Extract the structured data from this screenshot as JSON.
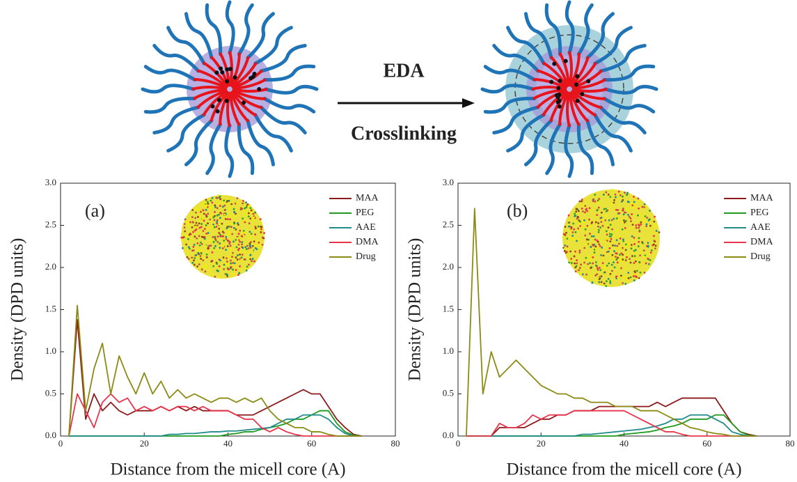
{
  "schematic": {
    "arrow_top": "EDA",
    "arrow_bottom": "Crosslinking"
  },
  "chart_data": [
    {
      "type": "line",
      "panel_label": "(a)",
      "xlabel": "Distance from the micell core (A)",
      "ylabel": "Density (DPD units)",
      "xlim": [
        0,
        80
      ],
      "ylim": [
        0,
        3
      ],
      "xticks": [
        0,
        20,
        40,
        60,
        80
      ],
      "yticks": [
        {
          "value": 0,
          "label": "0.0"
        },
        0.5,
        {
          "value": 1,
          "label": "1.0"
        },
        1.5,
        {
          "value": 2,
          "label": "2.0"
        },
        2.5,
        {
          "value": 3,
          "label": "3.0"
        }
      ],
      "legend": "upper right",
      "x": [
        2,
        4,
        6,
        8,
        10,
        12,
        14,
        16,
        18,
        20,
        22,
        24,
        26,
        28,
        30,
        32,
        34,
        36,
        38,
        40,
        42,
        44,
        46,
        48,
        50,
        52,
        54,
        56,
        58,
        60,
        62,
        64,
        66,
        68,
        70,
        72
      ],
      "series": [
        {
          "name": "MAA",
          "color": "#8b1a1a",
          "values": [
            0,
            1.38,
            0.2,
            0.5,
            0.3,
            0.4,
            0.3,
            0.25,
            0.3,
            0.3,
            0.3,
            0.35,
            0.3,
            0.35,
            0.3,
            0.35,
            0.3,
            0.3,
            0.3,
            0.3,
            0.25,
            0.25,
            0.25,
            0.3,
            0.35,
            0.4,
            0.45,
            0.5,
            0.55,
            0.5,
            0.5,
            0.35,
            0.2,
            0.1,
            0.02,
            0
          ]
        },
        {
          "name": "PEG",
          "color": "#1e9a1e",
          "values": [
            0,
            0,
            0,
            0,
            0,
            0,
            0,
            0,
            0,
            0,
            0,
            0,
            0,
            0,
            0,
            0,
            0,
            0,
            0,
            0.02,
            0.03,
            0.05,
            0.05,
            0.08,
            0.1,
            0.12,
            0.15,
            0.2,
            0.2,
            0.25,
            0.3,
            0.3,
            0.15,
            0.05,
            0.01,
            0
          ]
        },
        {
          "name": "AAE",
          "color": "#1f8a8a",
          "values": [
            0,
            0,
            0,
            0,
            0,
            0,
            0,
            0,
            0,
            0,
            0,
            0,
            0.02,
            0.02,
            0.03,
            0.03,
            0.04,
            0.05,
            0.05,
            0.06,
            0.06,
            0.07,
            0.08,
            0.09,
            0.1,
            0.15,
            0.2,
            0.2,
            0.25,
            0.25,
            0.25,
            0.2,
            0.1,
            0.03,
            0,
            0
          ]
        },
        {
          "name": "DMA",
          "color": "#e8334a",
          "values": [
            0,
            0.5,
            0.3,
            0.1,
            0.4,
            0.5,
            0.4,
            0.45,
            0.3,
            0.35,
            0.3,
            0.35,
            0.3,
            0.35,
            0.35,
            0.3,
            0.35,
            0.3,
            0.3,
            0.3,
            0.25,
            0.2,
            0.2,
            0.1,
            0.05,
            0.1,
            0.05,
            0.02,
            0,
            0,
            0,
            0,
            0,
            0,
            0,
            0
          ]
        },
        {
          "name": "Drug",
          "color": "#8a8a14",
          "values": [
            0,
            1.55,
            0.3,
            0.8,
            1.1,
            0.5,
            0.95,
            0.7,
            0.5,
            0.75,
            0.5,
            0.65,
            0.45,
            0.55,
            0.45,
            0.5,
            0.45,
            0.4,
            0.45,
            0.45,
            0.4,
            0.45,
            0.4,
            0.45,
            0.3,
            0.2,
            0.15,
            0.1,
            0.1,
            0.05,
            0.05,
            0.02,
            0,
            0,
            0,
            0
          ]
        }
      ]
    },
    {
      "type": "line",
      "panel_label": "(b)",
      "xlabel": "Distance from the micell core (A)",
      "ylabel": "Density (DPD units)",
      "xlim": [
        0,
        80
      ],
      "ylim": [
        0,
        3
      ],
      "xticks": [
        0,
        20,
        40,
        60,
        80
      ],
      "yticks": [
        {
          "value": 0,
          "label": "0.0"
        },
        0.5,
        {
          "value": 1,
          "label": "1.0"
        },
        1.5,
        {
          "value": 2,
          "label": "2.0"
        },
        2.5,
        {
          "value": 3,
          "label": "3.0"
        }
      ],
      "legend": "upper right",
      "x": [
        2,
        4,
        6,
        8,
        10,
        12,
        14,
        16,
        18,
        20,
        22,
        24,
        26,
        28,
        30,
        32,
        34,
        36,
        38,
        40,
        42,
        44,
        46,
        48,
        50,
        52,
        54,
        56,
        58,
        60,
        62,
        64,
        66,
        68,
        70,
        72
      ],
      "series": [
        {
          "name": "MAA",
          "color": "#8b1a1a",
          "values": [
            0,
            0,
            0,
            0,
            0.1,
            0.1,
            0.1,
            0.1,
            0.15,
            0.2,
            0.2,
            0.25,
            0.25,
            0.3,
            0.3,
            0.3,
            0.35,
            0.35,
            0.35,
            0.35,
            0.35,
            0.35,
            0.35,
            0.4,
            0.35,
            0.4,
            0.45,
            0.45,
            0.45,
            0.45,
            0.45,
            0.3,
            0.15,
            0.05,
            0.02,
            0
          ]
        },
        {
          "name": "PEG",
          "color": "#1e9a1e",
          "values": [
            0,
            0,
            0,
            0,
            0,
            0,
            0,
            0,
            0,
            0,
            0,
            0,
            0,
            0,
            0,
            0,
            0,
            0,
            0,
            0.02,
            0.03,
            0.04,
            0.05,
            0.07,
            0.1,
            0.12,
            0.15,
            0.2,
            0.2,
            0.2,
            0.25,
            0.25,
            0.15,
            0.05,
            0.01,
            0
          ]
        },
        {
          "name": "AAE",
          "color": "#1f8a8a",
          "values": [
            0,
            0,
            0,
            0,
            0,
            0,
            0,
            0,
            0,
            0,
            0,
            0,
            0,
            0,
            0.02,
            0.02,
            0.03,
            0.04,
            0.05,
            0.06,
            0.07,
            0.08,
            0.1,
            0.12,
            0.15,
            0.2,
            0.2,
            0.25,
            0.25,
            0.25,
            0.2,
            0.15,
            0.05,
            0.02,
            0,
            0
          ]
        },
        {
          "name": "DMA",
          "color": "#e8334a",
          "values": [
            0,
            0,
            0,
            0,
            0.15,
            0.1,
            0.1,
            0.15,
            0.25,
            0.2,
            0.25,
            0.25,
            0.25,
            0.3,
            0.3,
            0.3,
            0.3,
            0.3,
            0.3,
            0.3,
            0.25,
            0.2,
            0.15,
            0.1,
            0.05,
            0.05,
            0.02,
            0,
            0,
            0,
            0,
            0,
            0,
            0,
            0,
            0
          ]
        },
        {
          "name": "Drug",
          "color": "#8a8a14",
          "values": [
            0,
            2.7,
            0.5,
            1.0,
            0.7,
            0.8,
            0.9,
            0.8,
            0.7,
            0.6,
            0.55,
            0.5,
            0.5,
            0.45,
            0.45,
            0.4,
            0.4,
            0.4,
            0.35,
            0.35,
            0.35,
            0.3,
            0.3,
            0.3,
            0.25,
            0.2,
            0.15,
            0.1,
            0.08,
            0.05,
            0.03,
            0.02,
            0,
            0,
            0,
            0
          ]
        }
      ]
    }
  ]
}
